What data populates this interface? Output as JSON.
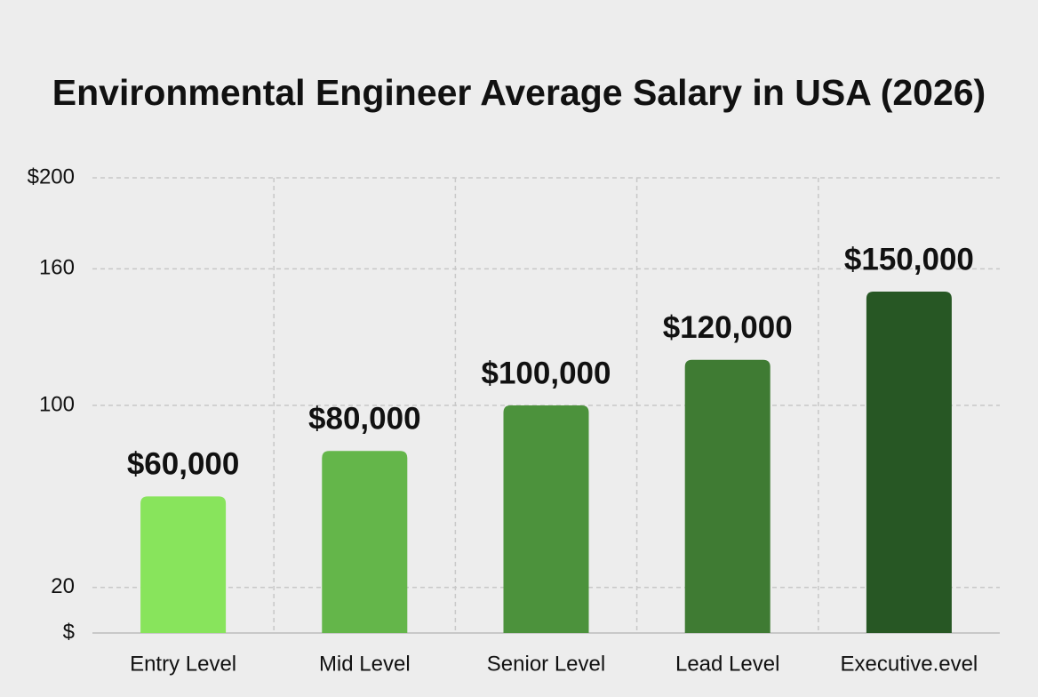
{
  "chart_data": {
    "type": "bar",
    "title": "Environmental Engineer Average Salary in USA (2026)",
    "categories": [
      "Entry Level",
      "Mid Level",
      "Senior Level",
      "Lead Level",
      "Executive.evel"
    ],
    "values": [
      60,
      80,
      100,
      120,
      150
    ],
    "value_labels": [
      "$60,000",
      "$80,000",
      "$100,000",
      "$120,000",
      "$150,000"
    ],
    "colors": [
      "#88e45c",
      "#64b64a",
      "#4c923c",
      "#3f7b33",
      "#275724"
    ],
    "ylim": [
      0,
      200
    ],
    "yticks": [
      {
        "value": 0,
        "label": "$"
      },
      20,
      100,
      160,
      {
        "value": 200,
        "label": "$200"
      }
    ],
    "grid": true
  }
}
